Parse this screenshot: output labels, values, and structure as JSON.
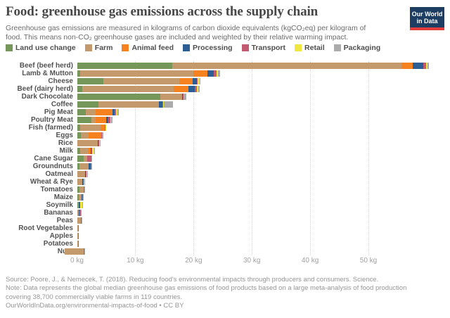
{
  "header": {
    "title": "Food: greenhouse gas emissions across the supply chain",
    "subtitle_line1": "Greenhouse gas emissions are measured in kilograms of carbon dioxide equivalents (kgCO₂eq) per kilogram of",
    "subtitle_line2": "food. This means non-CO₂ greenhouse gases are included and weighted by their relative warming impact.",
    "logo": {
      "line1": "Our World",
      "line2": "in Data"
    }
  },
  "colors": {
    "logo_background": "#1d3d63",
    "logo_underline": "#e23c3c",
    "title_text": "#484848",
    "subtitle_text": "#6c6c6c",
    "axis_text": "#a2a2a2",
    "gridline": "#d6d6d6",
    "footer_text": "#969696"
  },
  "chart_data": {
    "type": "bar",
    "stacked": true,
    "horizontal": true,
    "unit": "kgCO₂eq per kilogram of food",
    "legend_position": "top",
    "grid": "dotted-vertical",
    "categories": [
      "Beef (beef herd)",
      "Lamb & Mutton",
      "Cheese",
      "Beef (dairy herd)",
      "Dark Chocolate",
      "Coffee",
      "Pig Meat",
      "Poultry Meat",
      "Fish (farmed)",
      "Eggs",
      "Rice",
      "Milk",
      "Cane Sugar",
      "Groundnuts",
      "Oatmeal",
      "Wheat & Rye",
      "Tomatoes",
      "Maize",
      "Soymilk",
      "Bananas",
      "Peas",
      "Root Vegetables",
      "Apples",
      "Potatoes",
      "Nuts"
    ],
    "series": [
      {
        "name": "Land use change",
        "color": "#75975a",
        "values": [
          16.3,
          0.5,
          4.5,
          0.9,
          14.3,
          3.7,
          1.5,
          2.5,
          0.5,
          0.7,
          0.0,
          0.5,
          1.2,
          0.4,
          0.0,
          0.1,
          0.4,
          0.3,
          0.2,
          0.0,
          0.0,
          0.0,
          0.0,
          0.0,
          -2.1
        ]
      },
      {
        "name": "Farm",
        "color": "#c49a6c",
        "values": [
          39.4,
          19.5,
          13.1,
          15.7,
          3.7,
          10.4,
          1.7,
          0.7,
          3.5,
          1.3,
          3.6,
          1.5,
          0.5,
          1.6,
          1.4,
          0.8,
          0.7,
          0.5,
          0.1,
          0.3,
          0.7,
          0.2,
          0.2,
          0.2,
          3.2
        ]
      },
      {
        "name": "Animal feed",
        "color": "#f5821f",
        "values": [
          1.9,
          2.4,
          2.3,
          2.5,
          0.0,
          0.0,
          2.9,
          1.8,
          0.8,
          2.2,
          0.0,
          0.3,
          0.0,
          0.0,
          0.0,
          0.0,
          0.0,
          0.0,
          0.0,
          0.0,
          0.0,
          0.0,
          0.0,
          0.0,
          0.0
        ]
      },
      {
        "name": "Processing",
        "color": "#2d5e93",
        "values": [
          1.8,
          1.1,
          0.7,
          1.1,
          0.2,
          0.6,
          0.3,
          0.4,
          0.0,
          0.0,
          0.1,
          0.2,
          0.0,
          0.4,
          0.1,
          0.2,
          0.0,
          0.1,
          0.2,
          0.1,
          0.0,
          0.0,
          0.0,
          0.0,
          0.1
        ]
      },
      {
        "name": "Transport",
        "color": "#c25b72",
        "values": [
          0.5,
          0.5,
          0.1,
          0.4,
          0.1,
          0.1,
          0.3,
          0.3,
          0.1,
          0.1,
          0.1,
          0.1,
          0.8,
          0.1,
          0.1,
          0.1,
          0.2,
          0.1,
          0.1,
          0.3,
          0.1,
          0.1,
          0.1,
          0.1,
          0.1
        ]
      },
      {
        "name": "Retail",
        "color": "#f1e63e",
        "values": [
          0.2,
          0.2,
          0.3,
          0.2,
          0.0,
          0.1,
          0.2,
          0.2,
          0.1,
          0.0,
          0.1,
          0.3,
          0.0,
          0.0,
          0.1,
          0.1,
          0.0,
          0.0,
          0.3,
          0.0,
          0.0,
          0.0,
          0.0,
          0.0,
          0.0
        ]
      },
      {
        "name": "Packaging",
        "color": "#ababab",
        "values": [
          0.3,
          0.3,
          0.2,
          0.3,
          0.4,
          1.6,
          0.3,
          0.2,
          0.0,
          0.2,
          0.1,
          0.1,
          0.1,
          0.1,
          0.1,
          0.1,
          0.1,
          0.1,
          0.1,
          0.1,
          0.1,
          0.0,
          0.0,
          0.0,
          0.1
        ]
      }
    ],
    "x_axis": {
      "ticks": [
        0,
        10,
        20,
        30,
        40,
        50
      ],
      "tick_suffix": " kg",
      "range": [
        -2.5,
        62
      ]
    }
  },
  "footer": {
    "source": "Source: Poore, J., & Nemecek, T. (2018). Reducing food's environmental impacts through producers and consumers. Science.",
    "note": "Note: Data represents the global median greenhouse gas emissions of food products based on a large meta-analysis of food production covering 38,700 commercially viable farms in 119 countries.",
    "link": "OurWorldInData.org/environmental-impacts-of-food",
    "separator": "•",
    "license": "CC BY"
  }
}
